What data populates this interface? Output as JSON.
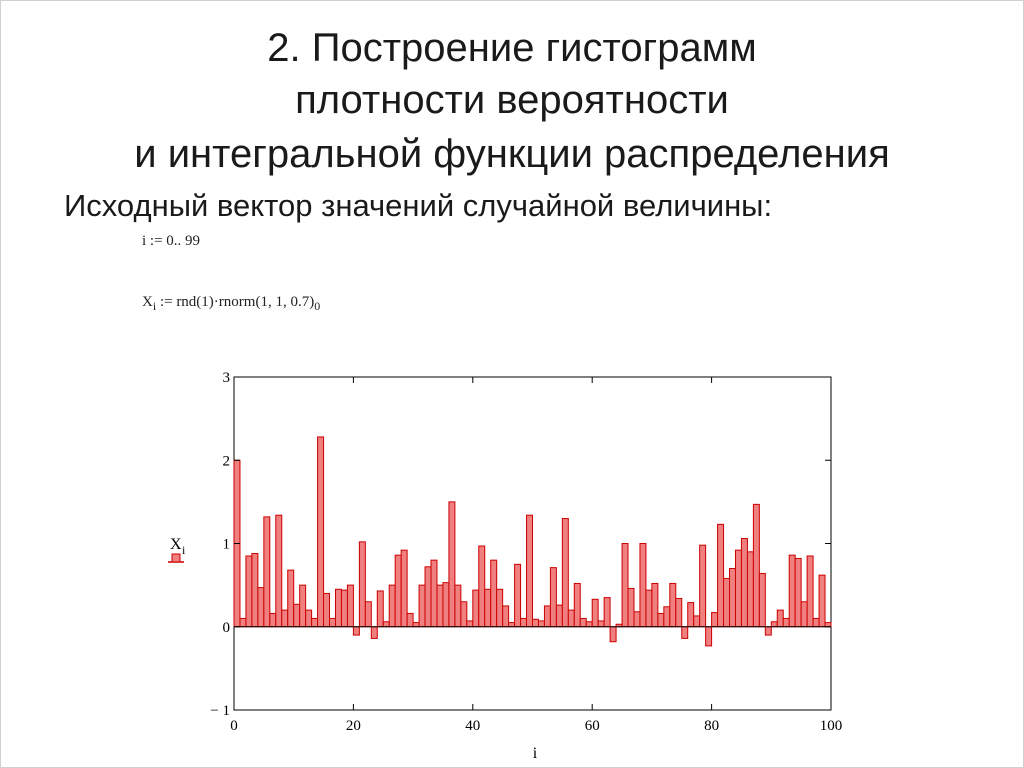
{
  "slide": {
    "title_lines": [
      "2. Построение гистограмм",
      "плотности вероятности",
      "и интегральной функции распределения"
    ],
    "subtitle": "Исходный вектор значений случайной величины:",
    "range_def": "i := 0.. 99",
    "formula": {
      "lhs_var": "X",
      "lhs_sub": "i",
      "rhs": " := rnd(1)·rnorm(1, 1, 0.7)",
      "rhs_sub": "0"
    }
  },
  "chart_data": {
    "type": "bar",
    "xlabel": "i",
    "ylabel_var": "X",
    "ylabel_sub": "i",
    "xlim": [
      0,
      100
    ],
    "ylim": [
      -1,
      3
    ],
    "xticks": [
      0,
      20,
      40,
      60,
      80,
      100
    ],
    "yticks": [
      -1,
      0,
      1,
      2,
      3
    ],
    "ytick_labels": [
      "− 1",
      "0",
      "1",
      "2",
      "3"
    ],
    "bar_color": "#f08080",
    "edge_color": "#cc0000",
    "x": [
      0,
      1,
      2,
      3,
      4,
      5,
      6,
      7,
      8,
      9,
      10,
      11,
      12,
      13,
      14,
      15,
      16,
      17,
      18,
      19,
      20,
      21,
      22,
      23,
      24,
      25,
      26,
      27,
      28,
      29,
      30,
      31,
      32,
      33,
      34,
      35,
      36,
      37,
      38,
      39,
      40,
      41,
      42,
      43,
      44,
      45,
      46,
      47,
      48,
      49,
      50,
      51,
      52,
      53,
      54,
      55,
      56,
      57,
      58,
      59,
      60,
      61,
      62,
      63,
      64,
      65,
      66,
      67,
      68,
      69,
      70,
      71,
      72,
      73,
      74,
      75,
      76,
      77,
      78,
      79,
      80,
      81,
      82,
      83,
      84,
      85,
      86,
      87,
      88,
      89,
      90,
      91,
      92,
      93,
      94,
      95,
      96,
      97,
      98,
      99
    ],
    "values": [
      2.0,
      0.1,
      0.85,
      0.88,
      0.47,
      1.32,
      0.16,
      1.34,
      0.2,
      0.68,
      0.27,
      0.5,
      0.2,
      0.1,
      2.28,
      0.4,
      0.1,
      0.45,
      0.44,
      0.5,
      -0.1,
      1.02,
      0.3,
      -0.14,
      0.43,
      0.06,
      0.5,
      0.86,
      0.92,
      0.16,
      0.05,
      0.5,
      0.72,
      0.8,
      0.5,
      0.53,
      1.5,
      0.5,
      0.3,
      0.07,
      0.44,
      0.97,
      0.45,
      0.8,
      0.45,
      0.25,
      0.05,
      0.75,
      0.1,
      1.34,
      0.09,
      0.07,
      0.25,
      0.71,
      0.26,
      1.3,
      0.2,
      0.52,
      0.1,
      0.06,
      0.33,
      0.07,
      0.35,
      -0.18,
      0.03,
      1.0,
      0.46,
      0.18,
      1.0,
      0.44,
      0.52,
      0.16,
      0.24,
      0.52,
      0.34,
      -0.14,
      0.29,
      0.13,
      0.98,
      -0.23,
      0.17,
      1.23,
      0.58,
      0.7,
      0.92,
      1.06,
      0.9,
      1.47,
      0.64,
      -0.1,
      0.06,
      0.2,
      0.1,
      0.86,
      0.82,
      0.3,
      0.85,
      0.1,
      0.62,
      0.05
    ]
  }
}
